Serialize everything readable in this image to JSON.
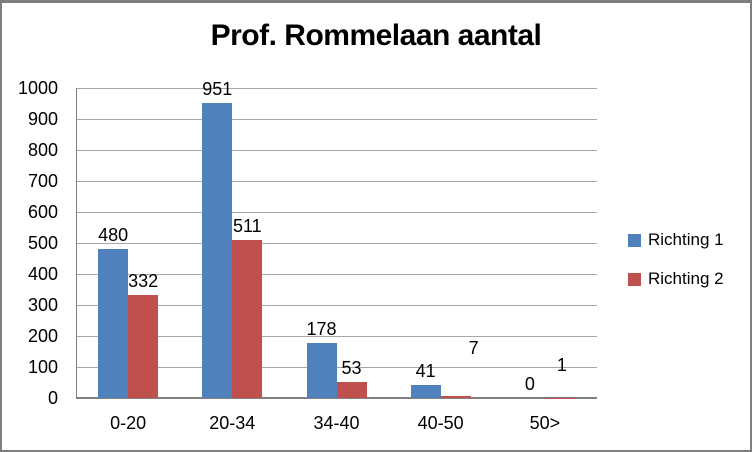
{
  "chart_data": {
    "type": "bar",
    "title": "Prof. Rommelaan aantal",
    "categories": [
      "0-20",
      "20-34",
      "34-40",
      "40-50",
      "50>"
    ],
    "series": [
      {
        "name": "Richting 1",
        "color": "#4F81BD",
        "values": [
          480,
          951,
          178,
          41,
          0
        ]
      },
      {
        "name": "Richting 2",
        "color": "#C0504D",
        "values": [
          332,
          511,
          53,
          7,
          1
        ]
      }
    ],
    "xlabel": "",
    "ylabel": "",
    "ylim": [
      0,
      1000
    ],
    "ytick_step": 100,
    "ytick_labels": [
      "0",
      "100",
      "200",
      "300",
      "400",
      "500",
      "600",
      "700",
      "800",
      "900",
      "1000"
    ],
    "grid": true,
    "data_labels": true,
    "legend_position": "right",
    "legend_entries": [
      "Richting 1",
      "Richting 2"
    ]
  },
  "colors": {
    "series1": "#4F81BD",
    "series2": "#C0504D",
    "gridline": "#A6A6A6",
    "axis": "#808080",
    "frame_border": "#7F7F7F",
    "background": "#FFFFFF",
    "text": "#000000"
  }
}
